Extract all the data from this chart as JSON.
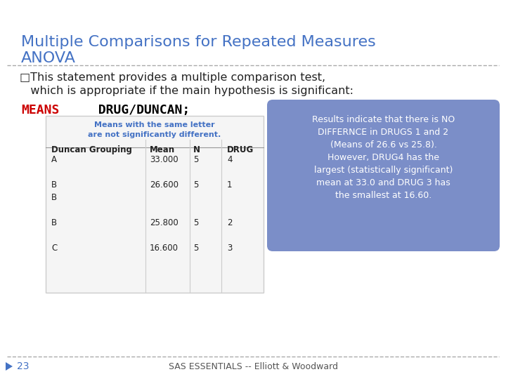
{
  "title_line1": "Multiple Comparisons for Repeated Measures",
  "title_line2": "ANOVA",
  "title_color": "#4472C4",
  "bg_color": "#FFFFFF",
  "bullet_text_line1": "□This statement provides a multiple comparison test,",
  "bullet_text_line2": "   which is appropriate if the main hypothesis is significant:",
  "code_means": "MEANS",
  "code_means_color": "#CC0000",
  "code_rest": "  DRUG/DUNCAN;",
  "code_color": "#000000",
  "table_header_row": [
    "Duncan Grouping",
    "Mean",
    "N",
    "DRUG"
  ],
  "table_note_line1": "Means with the same letter",
  "table_note_line2": "are not significantly different.",
  "callout_text": "Results indicate that there is NO\nDIFFERNCE in DRUGS 1 and 2\n(Means of 26.6 vs 25.8).\nHowever, DRUG4 has the\nlargest (statistically significant)\nmean at 33.0 and DRUG 3 has\nthe smallest at 16.60.",
  "callout_bg": "#7B8EC8",
  "callout_text_color": "#FFFFFF",
  "footer_text": "SAS ESSENTIALS -- Elliott & Woodward",
  "page_num": "23",
  "separator_color": "#AAAAAA",
  "arrow_color": "#7B8EC8"
}
